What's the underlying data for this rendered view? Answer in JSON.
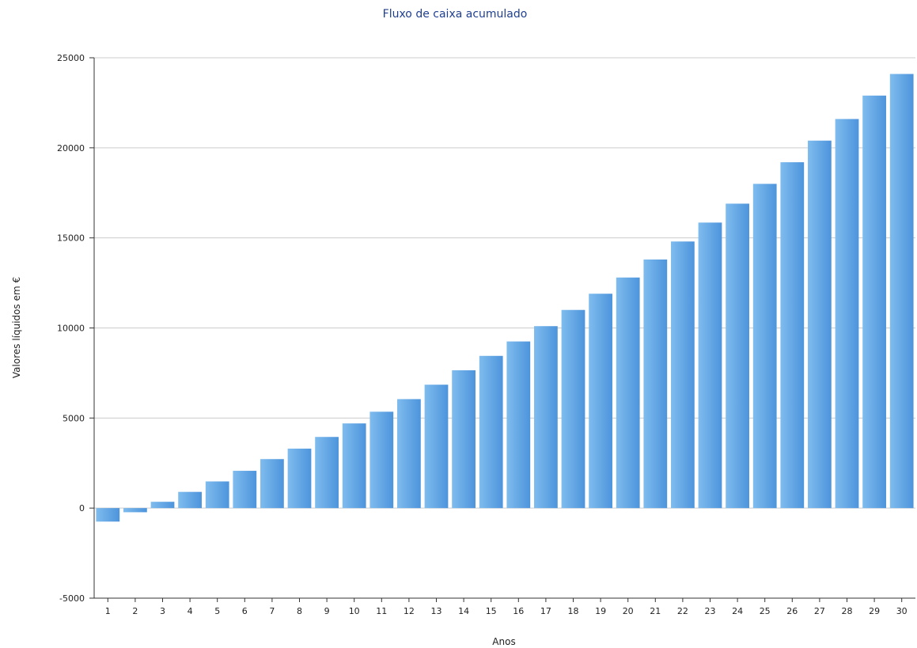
{
  "chart_data": {
    "type": "bar",
    "title": "Fluxo de caixa acumulado",
    "xlabel": "Anos",
    "ylabel": "Valores líquidos em €",
    "categories": [
      "1",
      "2",
      "3",
      "4",
      "5",
      "6",
      "7",
      "8",
      "9",
      "10",
      "11",
      "12",
      "13",
      "14",
      "15",
      "16",
      "17",
      "18",
      "19",
      "20",
      "21",
      "22",
      "23",
      "24",
      "25",
      "26",
      "27",
      "28",
      "29",
      "30"
    ],
    "series": [
      {
        "values": [
          -750,
          -230,
          350,
          900,
          1480,
          2070,
          2720,
          3300,
          3950,
          4700,
          5350,
          6050,
          6850,
          7650,
          8450,
          9250,
          10100,
          11000,
          11900,
          12800,
          13800,
          14800,
          15850,
          16900,
          18000,
          19200,
          20400,
          21600,
          22900,
          24100
        ]
      }
    ],
    "ylim": [
      -5000,
      25000
    ],
    "yticks": [
      -5000,
      0,
      5000,
      10000,
      15000,
      20000,
      25000
    ],
    "grid": true,
    "legend": "none",
    "colors": {
      "bar_light": "#7fbcee",
      "bar_dark": "#4d94dc",
      "title": "#1f3f8f",
      "grid": "#cccccc",
      "axis": "#333333"
    }
  }
}
